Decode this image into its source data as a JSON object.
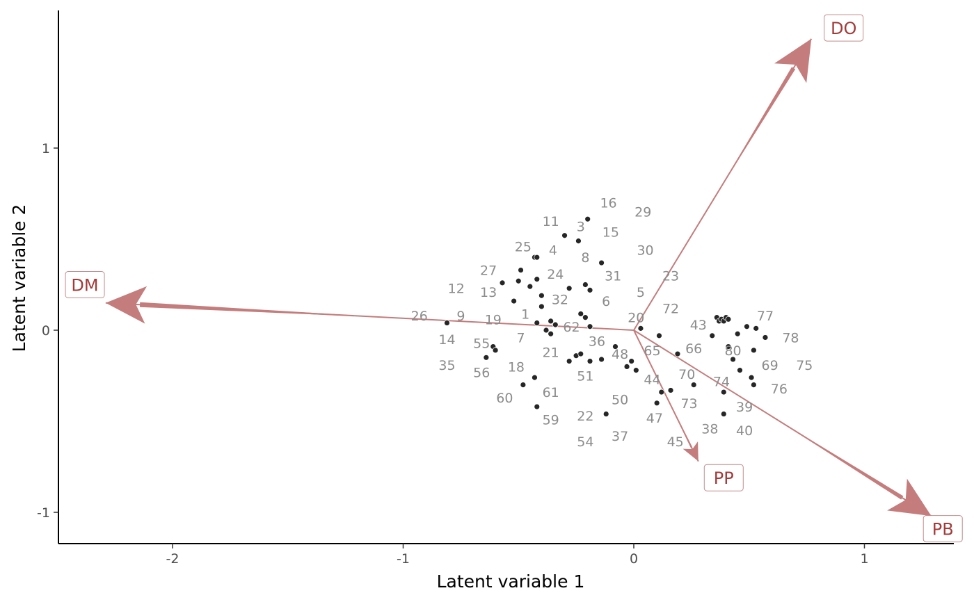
{
  "chart_data": {
    "type": "scatter",
    "xlabel": "Latent variable 1",
    "ylabel": "Latent variable 2",
    "xlim": [
      -2.5,
      1.4
    ],
    "ylim": [
      -1.17,
      1.76
    ],
    "x_ticks": [
      -2,
      -1,
      0,
      1
    ],
    "x_tick_labels": [
      "-2",
      "-1",
      "0",
      "1"
    ],
    "y_ticks": [
      -1,
      0,
      1
    ],
    "y_tick_labels": [
      "-1",
      "0",
      "1"
    ],
    "grid": false,
    "legend": "none",
    "colors": {
      "points": "#262626",
      "point_labels": "#8c8c8c",
      "arrows": "#c47c7c",
      "arrow_labels": "#a33a3a"
    },
    "points": [
      {
        "x": -0.81,
        "y": 0.04
      },
      {
        "x": -0.64,
        "y": -0.15
      },
      {
        "x": -0.61,
        "y": -0.09
      },
      {
        "x": -0.6,
        "y": -0.11
      },
      {
        "x": -0.57,
        "y": 0.26
      },
      {
        "x": -0.52,
        "y": 0.16
      },
      {
        "x": -0.5,
        "y": 0.27
      },
      {
        "x": -0.49,
        "y": 0.33
      },
      {
        "x": -0.48,
        "y": -0.3
      },
      {
        "x": -0.45,
        "y": 0.24
      },
      {
        "x": -0.43,
        "y": 0.4
      },
      {
        "x": -0.42,
        "y": 0.4
      },
      {
        "x": -0.42,
        "y": 0.28
      },
      {
        "x": -0.43,
        "y": -0.26
      },
      {
        "x": -0.42,
        "y": -0.42
      },
      {
        "x": -0.42,
        "y": 0.04
      },
      {
        "x": -0.4,
        "y": 0.19
      },
      {
        "x": -0.4,
        "y": 0.13
      },
      {
        "x": -0.38,
        "y": 0.0
      },
      {
        "x": -0.36,
        "y": -0.02
      },
      {
        "x": -0.36,
        "y": 0.05
      },
      {
        "x": -0.34,
        "y": 0.03
      },
      {
        "x": -0.3,
        "y": 0.52
      },
      {
        "x": -0.28,
        "y": 0.23
      },
      {
        "x": -0.28,
        "y": -0.17
      },
      {
        "x": -0.25,
        "y": -0.14
      },
      {
        "x": -0.24,
        "y": 0.49
      },
      {
        "x": -0.23,
        "y": -0.13
      },
      {
        "x": -0.23,
        "y": 0.09
      },
      {
        "x": -0.2,
        "y": 0.61
      },
      {
        "x": -0.21,
        "y": 0.07
      },
      {
        "x": -0.21,
        "y": 0.25
      },
      {
        "x": -0.19,
        "y": 0.22
      },
      {
        "x": -0.19,
        "y": 0.02
      },
      {
        "x": -0.19,
        "y": -0.17
      },
      {
        "x": -0.14,
        "y": 0.37
      },
      {
        "x": -0.14,
        "y": -0.16
      },
      {
        "x": -0.12,
        "y": -0.46
      },
      {
        "x": -0.08,
        "y": -0.09
      },
      {
        "x": -0.03,
        "y": -0.2
      },
      {
        "x": -0.01,
        "y": -0.17
      },
      {
        "x": 0.01,
        "y": -0.22
      },
      {
        "x": 0.03,
        "y": 0.01
      },
      {
        "x": 0.1,
        "y": -0.4
      },
      {
        "x": 0.11,
        "y": -0.03
      },
      {
        "x": 0.12,
        "y": -0.34
      },
      {
        "x": 0.16,
        "y": -0.33
      },
      {
        "x": 0.19,
        "y": -0.13
      },
      {
        "x": 0.26,
        "y": -0.3
      },
      {
        "x": 0.34,
        "y": -0.03
      },
      {
        "x": 0.36,
        "y": 0.07
      },
      {
        "x": 0.37,
        "y": 0.05
      },
      {
        "x": 0.38,
        "y": 0.06
      },
      {
        "x": 0.39,
        "y": 0.05
      },
      {
        "x": 0.4,
        "y": 0.07
      },
      {
        "x": 0.41,
        "y": 0.06
      },
      {
        "x": 0.41,
        "y": -0.09
      },
      {
        "x": 0.39,
        "y": -0.34
      },
      {
        "x": 0.39,
        "y": -0.46
      },
      {
        "x": 0.43,
        "y": -0.16
      },
      {
        "x": 0.45,
        "y": -0.02
      },
      {
        "x": 0.46,
        "y": -0.22
      },
      {
        "x": 0.49,
        "y": 0.02
      },
      {
        "x": 0.51,
        "y": -0.26
      },
      {
        "x": 0.52,
        "y": -0.11
      },
      {
        "x": 0.52,
        "y": -0.3
      },
      {
        "x": 0.53,
        "y": 0.01
      },
      {
        "x": 0.57,
        "y": -0.04
      }
    ],
    "point_labels": [
      {
        "text": "16",
        "x": -0.11,
        "y": 0.7
      },
      {
        "text": "29",
        "x": 0.04,
        "y": 0.65
      },
      {
        "text": "11",
        "x": -0.36,
        "y": 0.6
      },
      {
        "text": "3",
        "x": -0.23,
        "y": 0.57
      },
      {
        "text": "15",
        "x": -0.1,
        "y": 0.54
      },
      {
        "text": "25",
        "x": -0.48,
        "y": 0.46
      },
      {
        "text": "4",
        "x": -0.35,
        "y": 0.44
      },
      {
        "text": "30",
        "x": 0.05,
        "y": 0.44
      },
      {
        "text": "8",
        "x": -0.21,
        "y": 0.4
      },
      {
        "text": "27",
        "x": -0.63,
        "y": 0.33
      },
      {
        "text": "24",
        "x": -0.34,
        "y": 0.31
      },
      {
        "text": "31",
        "x": -0.09,
        "y": 0.3
      },
      {
        "text": "23",
        "x": 0.16,
        "y": 0.3
      },
      {
        "text": "12",
        "x": -0.77,
        "y": 0.23
      },
      {
        "text": "13",
        "x": -0.63,
        "y": 0.21
      },
      {
        "text": "5",
        "x": 0.03,
        "y": 0.21
      },
      {
        "text": "32",
        "x": -0.32,
        "y": 0.17
      },
      {
        "text": "6",
        "x": -0.12,
        "y": 0.16
      },
      {
        "text": "72",
        "x": 0.16,
        "y": 0.12
      },
      {
        "text": "26",
        "x": -0.93,
        "y": 0.08
      },
      {
        "text": "9",
        "x": -0.75,
        "y": 0.08
      },
      {
        "text": "1",
        "x": -0.47,
        "y": 0.09
      },
      {
        "text": "20",
        "x": 0.01,
        "y": 0.07
      },
      {
        "text": "77",
        "x": 0.57,
        "y": 0.08
      },
      {
        "text": "19",
        "x": -0.61,
        "y": 0.06
      },
      {
        "text": "43",
        "x": 0.28,
        "y": 0.03
      },
      {
        "text": "62",
        "x": -0.27,
        "y": 0.02
      },
      {
        "text": "78",
        "x": 0.68,
        "y": -0.04
      },
      {
        "text": "14",
        "x": -0.81,
        "y": -0.05
      },
      {
        "text": "7",
        "x": -0.49,
        "y": -0.04
      },
      {
        "text": "36",
        "x": -0.16,
        "y": -0.06
      },
      {
        "text": "55",
        "x": -0.66,
        "y": -0.07
      },
      {
        "text": "65",
        "x": 0.08,
        "y": -0.11
      },
      {
        "text": "66",
        "x": 0.26,
        "y": -0.1
      },
      {
        "text": "80",
        "x": 0.43,
        "y": -0.11
      },
      {
        "text": "21",
        "x": -0.36,
        "y": -0.12
      },
      {
        "text": "48",
        "x": -0.06,
        "y": -0.13
      },
      {
        "text": "35",
        "x": -0.81,
        "y": -0.19
      },
      {
        "text": "69",
        "x": 0.59,
        "y": -0.19
      },
      {
        "text": "75",
        "x": 0.74,
        "y": -0.19
      },
      {
        "text": "18",
        "x": -0.51,
        "y": -0.2
      },
      {
        "text": "56",
        "x": -0.66,
        "y": -0.23
      },
      {
        "text": "70",
        "x": 0.23,
        "y": -0.24
      },
      {
        "text": "51",
        "x": -0.21,
        "y": -0.25
      },
      {
        "text": "44",
        "x": 0.08,
        "y": -0.27
      },
      {
        "text": "74",
        "x": 0.38,
        "y": -0.28
      },
      {
        "text": "76",
        "x": 0.63,
        "y": -0.32
      },
      {
        "text": "61",
        "x": -0.36,
        "y": -0.34
      },
      {
        "text": "60",
        "x": -0.56,
        "y": -0.37
      },
      {
        "text": "50",
        "x": -0.06,
        "y": -0.38
      },
      {
        "text": "73",
        "x": 0.24,
        "y": -0.4
      },
      {
        "text": "39",
        "x": 0.48,
        "y": -0.42
      },
      {
        "text": "22",
        "x": -0.21,
        "y": -0.47
      },
      {
        "text": "47",
        "x": 0.09,
        "y": -0.48
      },
      {
        "text": "59",
        "x": -0.36,
        "y": -0.49
      },
      {
        "text": "38",
        "x": 0.33,
        "y": -0.54
      },
      {
        "text": "40",
        "x": 0.48,
        "y": -0.55
      },
      {
        "text": "37",
        "x": -0.06,
        "y": -0.58
      },
      {
        "text": "54",
        "x": -0.21,
        "y": -0.61
      },
      {
        "text": "45",
        "x": 0.18,
        "y": -0.61
      }
    ],
    "arrows": [
      {
        "label": "DM",
        "x": -2.29,
        "y": 0.15
      },
      {
        "label": "DO",
        "x": 0.77,
        "y": 1.6
      },
      {
        "label": "PP",
        "x": 0.28,
        "y": -0.72
      },
      {
        "label": "PB",
        "x": 1.29,
        "y": -1.02
      }
    ],
    "arrow_labels": [
      {
        "text": "DM",
        "x": -2.38,
        "y": 0.25
      },
      {
        "text": "DO",
        "x": 0.91,
        "y": 1.66
      },
      {
        "text": "PP",
        "x": 0.39,
        "y": -0.81
      },
      {
        "text": "PB",
        "x": 1.34,
        "y": -1.09
      }
    ]
  }
}
